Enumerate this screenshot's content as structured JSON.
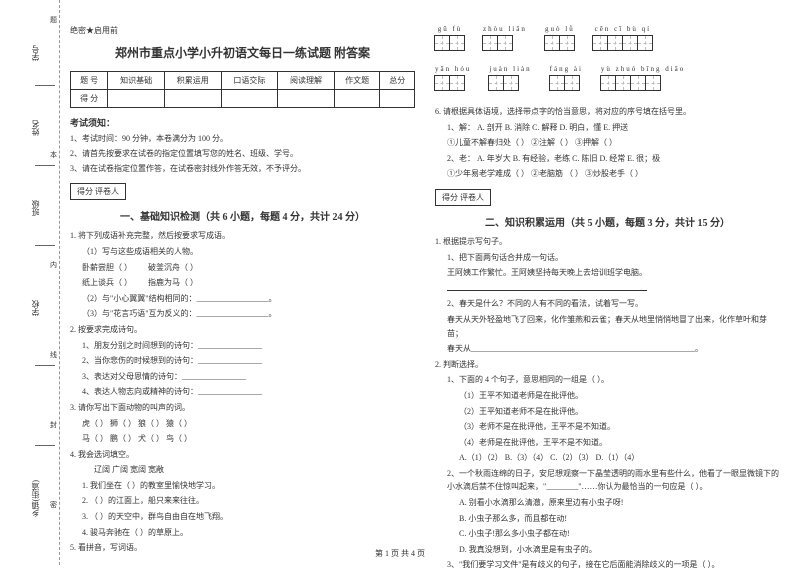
{
  "margin": {
    "labels": [
      "学号",
      "姓名",
      "班级",
      "学校",
      "乡镇(街道)"
    ],
    "folds": [
      "题",
      "本",
      "内",
      "线",
      "封",
      "密"
    ]
  },
  "secret": "绝密★启用前",
  "title": "郑州市重点小学小升初语文每日一练试题 附答案",
  "scoreTable": {
    "headers": [
      "题 号",
      "知识基础",
      "积累运用",
      "口语交际",
      "阅读理解",
      "作文题",
      "总分"
    ],
    "row": "得 分"
  },
  "notice": {
    "title": "考试须知：",
    "items": [
      "1、考试时间：90 分钟，本卷满分为 100 分。",
      "2、请首先按要求在试卷的指定位置填写您的姓名、班级、学号。",
      "3、请在试卷指定位置作答，在试卷密封线外作答无效，不予评分。"
    ]
  },
  "scoreBox": "得分    评卷人",
  "sec1": {
    "title": "一、基础知识检测（共 6 小题，每题 4 分，共计 24 分）",
    "q1": "1. 将下列成语补充完整，然后按要求写成语。",
    "q1a": "（1）写与这些成语相关的人物。",
    "q1a_items": [
      "卧薪尝胆（      ）",
      "破釜沉舟（      ）",
      "纸上谈兵（      ）",
      "指鹿为马（      ）"
    ],
    "q1b": "（2）与\"小心翼翼\"结构相同的：__________________。",
    "q1c": "（3）与\"花言巧语\"互为反义的：__________________。",
    "q2": "2. 按要求完成诗句。",
    "q2_items": [
      "1、朋友分别之时间想到的诗句：________________",
      "2、当你悲伤的时候想到的诗句：________________",
      "3、表达对父母恩情的诗句：________________",
      "4、表达人物志向或精神的诗句：________________"
    ],
    "q3": "3. 请你写出下面动物的叫声的词。",
    "q3_items": [
      "虎（    ）   狮（    ）   狼（    ）   猿（    ）",
      "马（    ）   鹏（    ）   犬（    ）   鸟（    ）"
    ],
    "q4": "4. 我会选词填空。",
    "q4_opts": "辽阔        广阔        宽阔        宽敞",
    "q4_items": [
      "1. 我们坐在（        ）的教室里愉快地学习。",
      "2. （        ）的江面上，船只来来往往。",
      "3. （        ）的天空中，群鸟自由自在地飞翔。",
      "4. 骏马奔驰在（        ）的草原上。"
    ],
    "q5": "5. 看拼音，写词语。"
  },
  "pinyin": [
    [
      {
        "py": "gū fù",
        "n": 2
      },
      {
        "py": "zhòu liǎn",
        "n": 2
      },
      {
        "py": "guò lǜ",
        "n": 2
      },
      {
        "py": "cēn cī bù qí",
        "n": 4
      }
    ],
    [
      {
        "py": "yān hóu",
        "n": 2
      },
      {
        "py": "juàn liàn",
        "n": 2
      },
      {
        "py": "fáng ài",
        "n": 2
      },
      {
        "py": "yù zhuó bīng diāo",
        "n": 4
      }
    ]
  ],
  "q6": {
    "stem": "6. 请根据具体语境，选择带点字的恰当意思，将对应的序号填在括号里。",
    "line1": "1、解：   A. 剖开   B. 消除   C. 解释   D. 明白，懂   E. 押送",
    "line1_items": "①儿童不解春归处（   ）   ②注解（   ）   ③押解（   ）",
    "line2": "2、老：   A. 年岁大   B. 有经验，老练   C. 陈旧   D. 经常   E. 很；极",
    "line2_items": "①少年易老学难成（   ）   ②老脑筋   （   ）   ③炒股老手（   ）"
  },
  "sec2": {
    "title": "二、知识积累运用（共 5 小题，每题 3 分，共计 15 分）",
    "q1": "1. 根据提示写句子。",
    "q1a": "1、把下面两句话合并成一句话。",
    "q1a_text": "王阿姨工作繁忙。王阿姨坚持每天晚上去培训班学电脑。",
    "q1b": "2、春天是什么？不同的人有不同的看法，试着写一写。",
    "q1b_text": "春天从天外轻盈地飞了回来，化作雏燕和云雀；春天从地里悄悄地冒了出来，化作草叶和芽苗；",
    "q1b_blank": "春天从________________________________________________________。",
    "q2": "2. 判断选择。",
    "q2a": "1、下面的 4 个句子，意思相同的一组是（        ）。",
    "q2a_items": [
      "（1）王平不知道老师是在批评他。",
      "（2）王平知道老师不是在批评他。",
      "（3）老师不是在批评他，王平不是不知道。",
      "（4）老师是在批评他，王平不是不知道。"
    ],
    "q2a_opts": "A.（1）（2）   B.（3）（4）   C.（2）（3）   D.（1）（4）",
    "q2b": "2、一个秋雨连绵的日子，安尼想观察一下晶莹透明的雨水里有些什么，他看了一眼显微镜下的小水滴后禁不住惊叫起来，\"________\"……你认为最恰当的一句应是（        ）。",
    "q2b_items": [
      "A. 别看小水滴那么清澈，原来里边有小虫子呀!",
      "B. 小虫子那么多，而且都在动!",
      "C. 小虫子!那么多小虫子都在动!",
      "D. 我真没想到，小水滴里是有虫子的。"
    ],
    "q2c": "3、\"我们要学习文件\"是有歧义的句子，接在它后面能消除歧义的一项是（     ）。"
  },
  "footer": "第 1 页 共 4 页"
}
